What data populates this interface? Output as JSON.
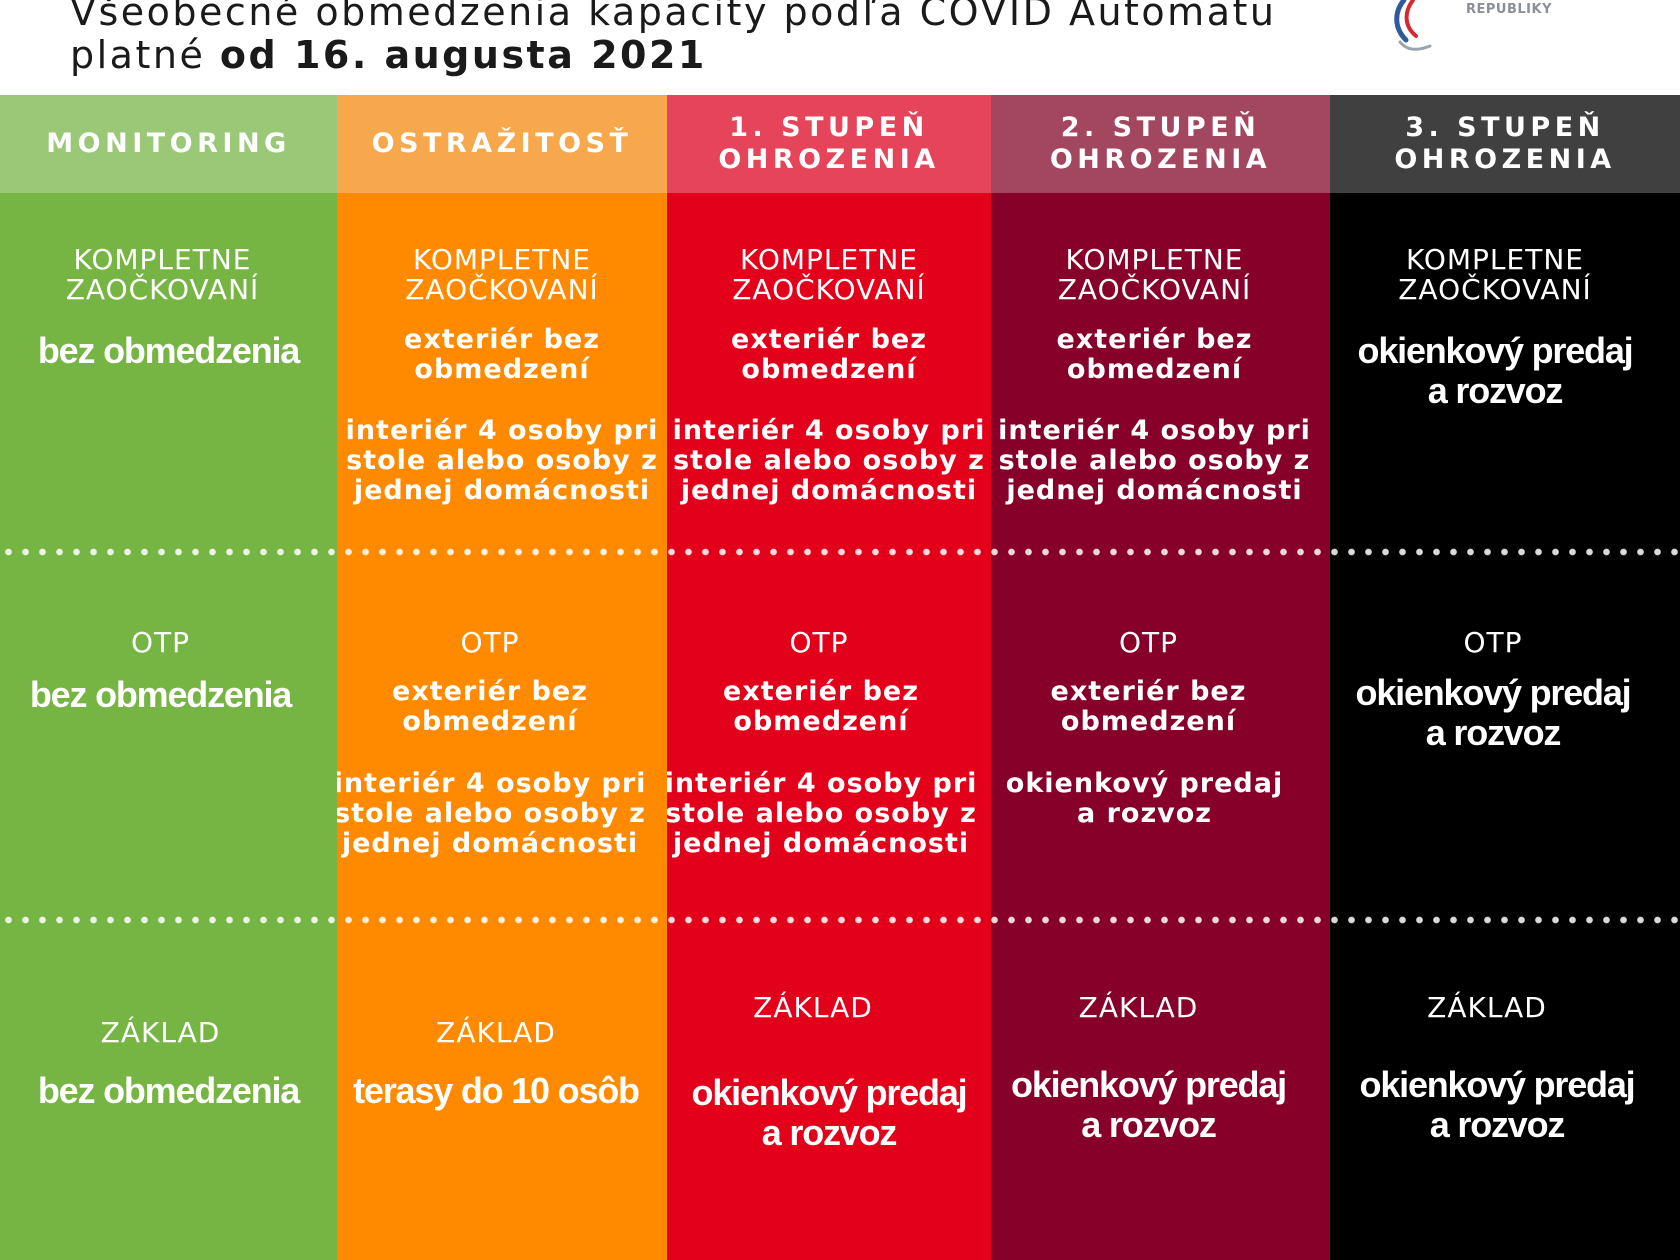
{
  "header": {
    "title": "Všeobecné obmedzenia kapacity podľa COVID Automatu",
    "subtitle_prefix": "platné ",
    "subtitle_bold": "od 16. augusta 2021",
    "logo_text": "REPUBLIKY"
  },
  "colors": {
    "monitoring": "#76b544",
    "monitoring_head": "#9bc877",
    "ostrazitost": "#ff8a00",
    "ostrazitost_head": "#f7a84d",
    "stupen1": "#e3001a",
    "stupen1_head": "#e5445a",
    "stupen2": "#86002a",
    "stupen2_head": "#a3465f",
    "stupen3": "#000000",
    "stupen3_head": "#404040",
    "logo_blue": "#2e5b9a",
    "logo_red": "#d7282f"
  },
  "columns": [
    {
      "id": "monitoring",
      "title": "MONITORING",
      "vaccinated": {
        "label": "KOMPLETNE\nZAOČKOVANÍ",
        "big": "bez obmedzenia"
      },
      "otp": {
        "label": "OTP",
        "big": "bez obmedzenia"
      },
      "basic": {
        "label": "ZÁKLAD",
        "big": "bez obmedzenia"
      }
    },
    {
      "id": "ostrazitost",
      "title": "OSTRAŽITOSŤ",
      "vaccinated": {
        "label": "KOMPLETNE\nZAOČKOVANÍ",
        "line1": "exteriér bez\nobmedzení",
        "line2": "interiér 4 osoby pri\nstole alebo osoby z\njednej domácnosti"
      },
      "otp": {
        "label": "OTP",
        "line1": "exteriér bez\nobmedzení",
        "line2": "interiér 4 osoby pri\nstole alebo osoby z\njednej domácnosti"
      },
      "basic": {
        "label": "ZÁKLAD",
        "big": "terasy do 10 osôb"
      }
    },
    {
      "id": "stupen1",
      "title": "1. STUPEŇ\nOHROZENIA",
      "vaccinated": {
        "label": "KOMPLETNE\nZAOČKOVANÍ",
        "line1": "exteriér bez\nobmedzení",
        "line2": "interiér 4 osoby pri\nstole alebo osoby z\njednej domácnosti"
      },
      "otp": {
        "label": "OTP",
        "line1": "exteriér bez\nobmedzení",
        "line2": "interiér 4 osoby pri\nstole alebo osoby z\njednej domácnosti"
      },
      "basic": {
        "label": "ZÁKLAD",
        "big": "okienkový predaj\na rozvoz"
      }
    },
    {
      "id": "stupen2",
      "title": "2. STUPEŇ\nOHROZENIA",
      "vaccinated": {
        "label": "KOMPLETNE\nZAOČKOVANÍ",
        "line1": "exteriér bez\nobmedzení",
        "line2": "interiér 4 osoby pri\nstole alebo osoby z\njednej domácnosti"
      },
      "otp": {
        "label": "OTP",
        "line1": "exteriér bez\nobmedzení",
        "line2": "okienkový predaj\na rozvoz"
      },
      "basic": {
        "label": "ZÁKLAD",
        "big": "okienkový predaj\na rozvoz"
      }
    },
    {
      "id": "stupen3",
      "title": "3. STUPEŇ\nOHROZENIA",
      "vaccinated": {
        "label": "KOMPLETNE\nZAOČKOVANÍ",
        "big": "okienkový predaj\na rozvoz"
      },
      "otp": {
        "label": "OTP",
        "big": "okienkový predaj\na rozvoz"
      },
      "basic": {
        "label": "ZÁKLAD",
        "big": "okienkový predaj\na rozvoz"
      }
    }
  ]
}
